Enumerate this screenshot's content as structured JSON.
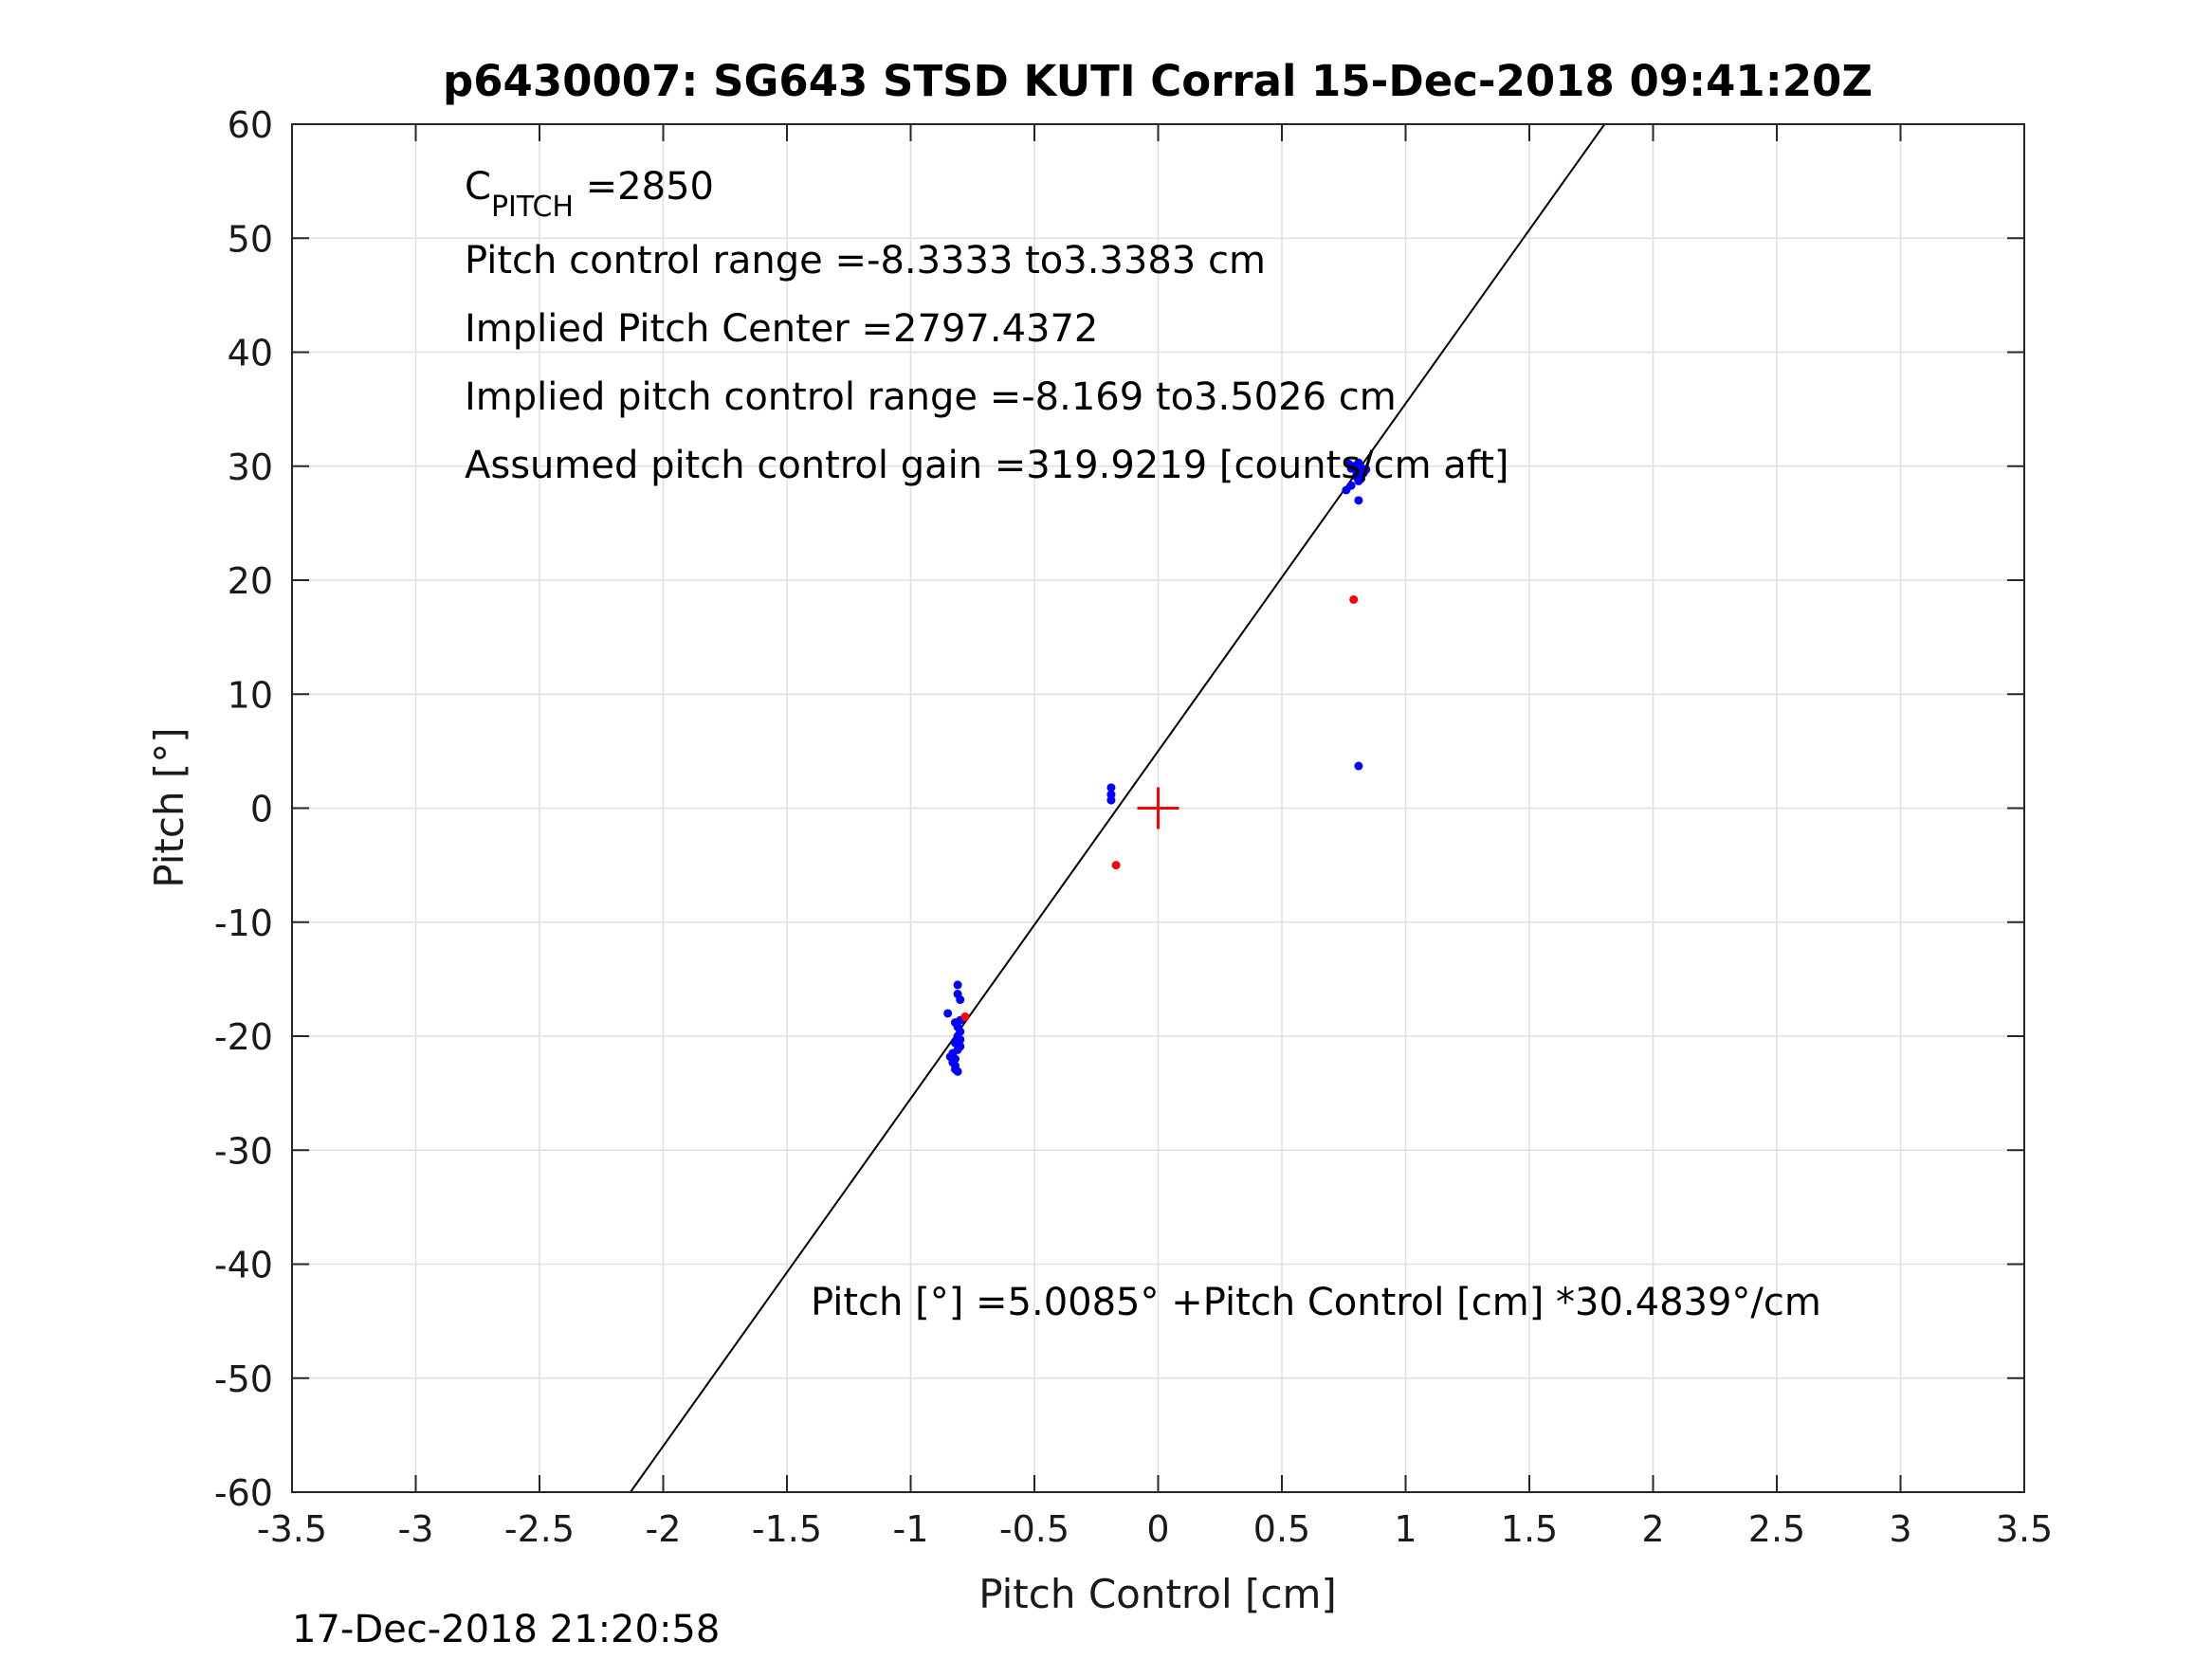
{
  "chart_data": {
    "type": "scatter",
    "title": "p6430007: SG643 STSD KUTI Corral 15-Dec-2018 09:41:20Z",
    "xlabel": "Pitch Control [cm]",
    "ylabel": "Pitch [°]",
    "xlim": [
      -3.5,
      3.5
    ],
    "ylim": [
      -60,
      60
    ],
    "x_ticks": [
      -3.5,
      -3,
      -2.5,
      -2,
      -1.5,
      -1,
      -0.5,
      0,
      0.5,
      1,
      1.5,
      2,
      2.5,
      3,
      3.5
    ],
    "x_tick_labels": [
      "-3.5",
      "-3",
      "-2.5",
      "-2",
      "-1.5",
      "-1",
      "-0.5",
      "0",
      "0.5",
      "1",
      "1.5",
      "2",
      "2.5",
      "3",
      "3.5"
    ],
    "y_ticks": [
      60,
      50,
      40,
      30,
      20,
      10,
      0,
      -10,
      -20,
      -30,
      -40,
      -50,
      -60
    ],
    "y_tick_labels": [
      "60",
      "50",
      "40",
      "30",
      "20",
      "10",
      "0",
      "-10",
      "-20",
      "-30",
      "-40",
      "-50",
      "-60"
    ],
    "grid": true,
    "series": [
      {
        "color": "#0000ff",
        "marker": "dot",
        "points": [
          [
            -0.81,
            -15.5
          ],
          [
            -0.81,
            -16.3
          ],
          [
            -0.8,
            -16.8
          ],
          [
            -0.85,
            -18.0
          ],
          [
            -0.82,
            -18.8
          ],
          [
            -0.81,
            -19.2
          ],
          [
            -0.8,
            -19.6
          ],
          [
            -0.81,
            -20.0
          ],
          [
            -0.8,
            -20.3
          ],
          [
            -0.82,
            -20.6
          ],
          [
            -0.8,
            -20.9
          ],
          [
            -0.81,
            -21.2
          ],
          [
            -0.83,
            -21.5
          ],
          [
            -0.84,
            -21.8
          ],
          [
            -0.82,
            -22.0
          ],
          [
            -0.83,
            -22.3
          ],
          [
            -0.82,
            -22.6
          ],
          [
            -0.82,
            -22.9
          ],
          [
            -0.81,
            -23.1
          ],
          [
            -0.8,
            -18.6
          ],
          [
            -0.19,
            1.8
          ],
          [
            -0.19,
            1.2
          ],
          [
            -0.19,
            0.7
          ],
          [
            0.77,
            30.2
          ],
          [
            0.78,
            29.8
          ],
          [
            0.79,
            30.0
          ],
          [
            0.8,
            29.6
          ],
          [
            0.81,
            30.3
          ],
          [
            0.82,
            29.9
          ],
          [
            0.83,
            29.4
          ],
          [
            0.84,
            29.7
          ],
          [
            0.8,
            29.1
          ],
          [
            0.81,
            28.7
          ],
          [
            0.82,
            28.9
          ],
          [
            0.78,
            28.3
          ],
          [
            0.76,
            27.9
          ],
          [
            0.81,
            27.0
          ],
          [
            0.81,
            3.7
          ]
        ]
      },
      {
        "color": "#ff0000",
        "marker": "dot",
        "points": [
          [
            -0.78,
            -18.3
          ],
          [
            -0.17,
            -5.0
          ],
          [
            0.79,
            18.3
          ]
        ]
      }
    ],
    "center_marker": {
      "x": 0,
      "y": 0,
      "color": "#ff0000",
      "shape": "plus"
    },
    "fit_line": {
      "intercept": 5.0085,
      "slope": 30.4839,
      "color": "#000000"
    },
    "annotations": {
      "c_pitch": {
        "main": "C",
        "subscript": "PITCH",
        "rest": " =2850"
      },
      "lines": [
        "Pitch control range =-8.3333 to3.3383 cm",
        "Implied Pitch Center =2797.4372",
        "Implied pitch control range =-8.169 to3.5026 cm",
        "Assumed pitch control gain =319.9219 [counts/cm aft]"
      ],
      "equation": "Pitch [°] =5.0085° +Pitch Control [cm] *30.4839°/cm"
    },
    "timestamp": "17-Dec-2018 21:20:58"
  }
}
